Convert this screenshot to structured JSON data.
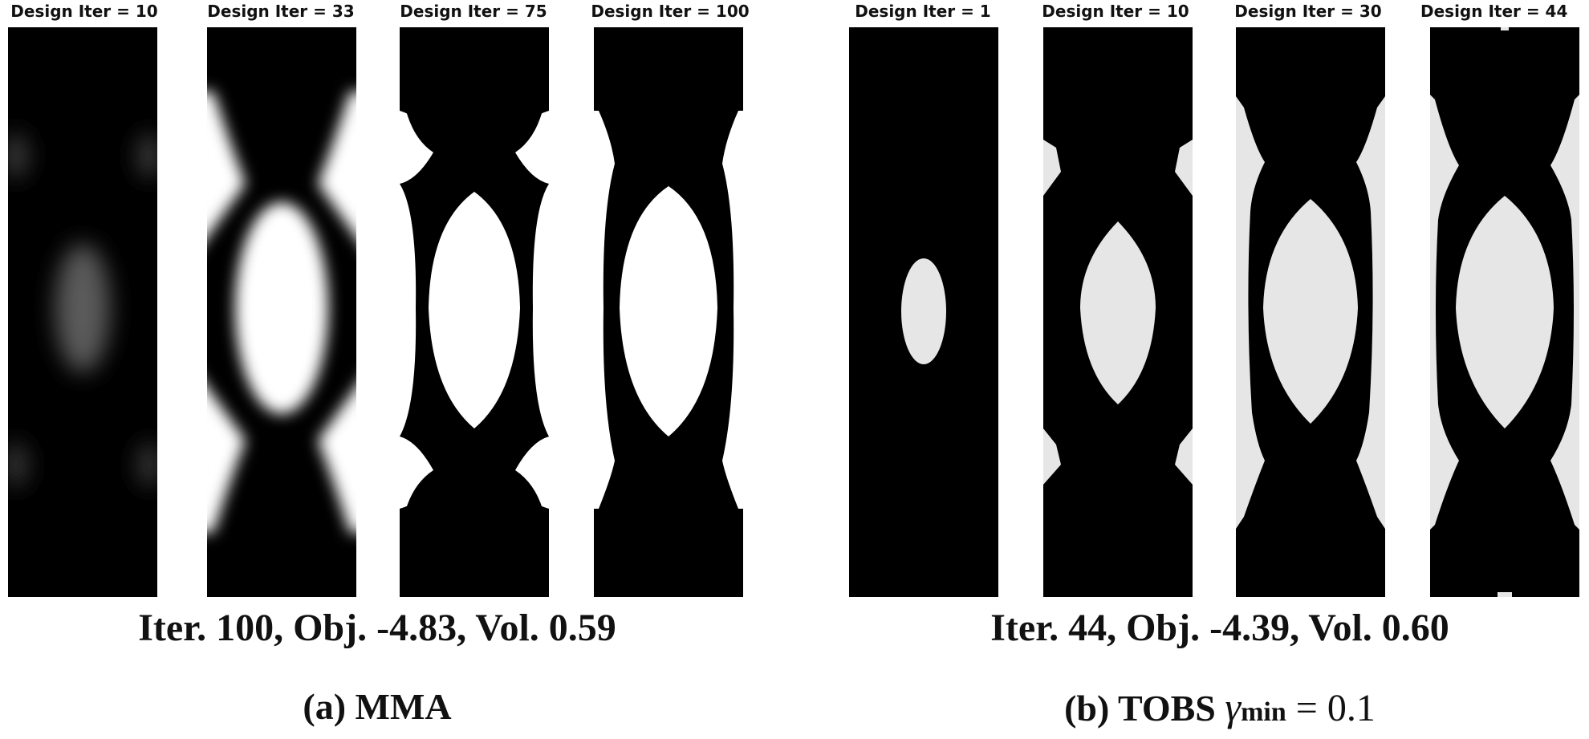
{
  "groups": {
    "mma": {
      "panels": [
        {
          "title": "Design Iter = 10"
        },
        {
          "title": "Design Iter = 33"
        },
        {
          "title": "Design Iter = 75"
        },
        {
          "title": "Design Iter = 100"
        }
      ],
      "summary": "Iter. 100, Obj. -4.83, Vol. 0.59",
      "caption": "(a) MMA"
    },
    "tobs": {
      "panels": [
        {
          "title": "Design Iter = 1"
        },
        {
          "title": "Design Iter = 10"
        },
        {
          "title": "Design Iter = 30"
        },
        {
          "title": "Design Iter = 44"
        }
      ],
      "summary": "Iter. 44, Obj. -4.39, Vol. 0.60",
      "caption_prefix": "(b) TOBS",
      "caption_symbol": "γ",
      "caption_subscript": "min",
      "caption_suffix": " = 0.1"
    }
  },
  "colors": {
    "solid": "#000000",
    "void_mma": "#ffffff",
    "void_tobs": "#e6e6e6",
    "background": "#ffffff"
  }
}
